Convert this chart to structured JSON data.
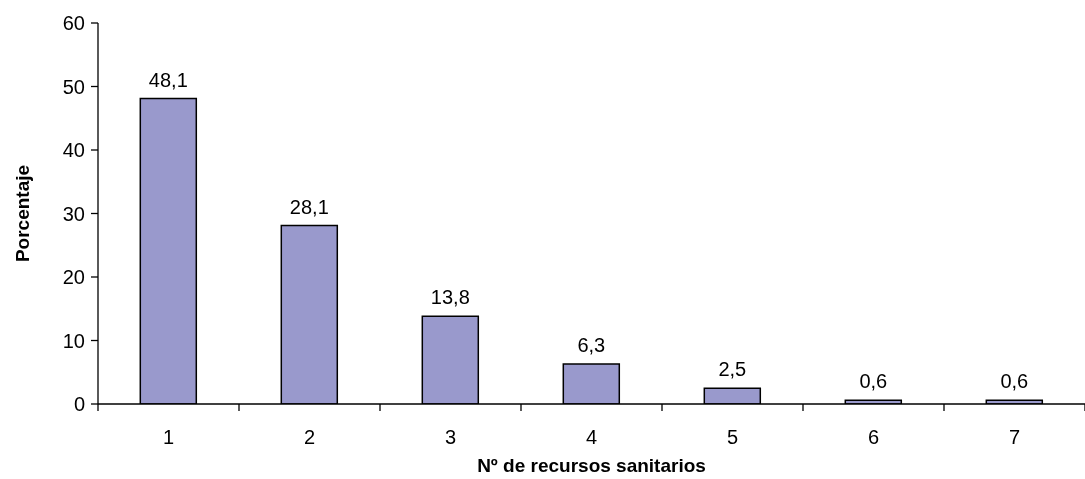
{
  "chart_data": {
    "type": "bar",
    "xlabel": "Nº de recursos sanitarios",
    "ylabel": "Porcentaje",
    "categories": [
      "1",
      "2",
      "3",
      "4",
      "5",
      "6",
      "7"
    ],
    "values": [
      48.1,
      28.1,
      13.8,
      6.3,
      2.5,
      0.6,
      0.6
    ],
    "value_labels": [
      "48,1",
      "28,1",
      "13,8",
      "6,3",
      "2,5",
      "0,6",
      "0,6"
    ],
    "color": "#9999cc",
    "ylim": [
      0,
      60
    ],
    "yticks": [
      0,
      10,
      20,
      30,
      40,
      50,
      60
    ]
  }
}
